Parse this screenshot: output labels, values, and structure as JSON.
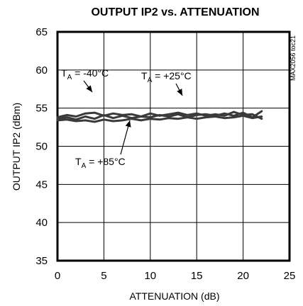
{
  "chart_data": {
    "type": "line",
    "title": "OUTPUT IP2 vs. ATTENUATION",
    "xlabel": "ATTENUATION (dB)",
    "ylabel": "OUTPUT IP2 (dBm)",
    "xlim": [
      0,
      25
    ],
    "ylim": [
      35,
      65
    ],
    "xticks": [
      "0",
      "5",
      "10",
      "15",
      "20",
      "25"
    ],
    "yticks": [
      "35",
      "40",
      "45",
      "50",
      "55",
      "60",
      "65"
    ],
    "grid": true,
    "figure_code": "MAX2056 toc21",
    "annotations": [
      {
        "prefix": "T",
        "sub": "A",
        "suffix": " = -40°C"
      },
      {
        "prefix": "T",
        "sub": "A",
        "suffix": " = +25°C"
      },
      {
        "prefix": "T",
        "sub": "A",
        "suffix": " = +85°C"
      }
    ],
    "series": [
      {
        "label": "T_A = -40°C",
        "x": [
          0,
          1,
          2,
          3,
          4,
          5,
          6,
          7,
          8,
          9,
          10,
          11,
          12,
          13,
          14,
          15,
          16,
          17,
          18,
          19,
          20,
          21,
          22
        ],
        "y": [
          53.8,
          54.1,
          53.9,
          54.3,
          54.4,
          54.0,
          54.3,
          54.1,
          54.2,
          53.9,
          54.3,
          54.0,
          54.2,
          54.4,
          54.1,
          54.3,
          54.0,
          54.2,
          54.0,
          54.5,
          54.1,
          54.2,
          53.6
        ]
      },
      {
        "label": "T_A = +25°C",
        "x": [
          0,
          1,
          2,
          3,
          4,
          5,
          6,
          7,
          8,
          9,
          10,
          11,
          12,
          13,
          14,
          15,
          16,
          17,
          18,
          19,
          20,
          21,
          22
        ],
        "y": [
          53.6,
          53.8,
          53.5,
          53.9,
          53.6,
          54.1,
          53.7,
          54.0,
          53.7,
          53.9,
          53.8,
          54.1,
          53.9,
          54.2,
          53.8,
          54.1,
          54.2,
          54.0,
          54.3,
          54.0,
          54.4,
          53.8,
          54.6
        ]
      },
      {
        "label": "T_A = +85°C",
        "x": [
          0,
          1,
          2,
          3,
          4,
          5,
          6,
          7,
          8,
          9,
          10,
          11,
          12,
          13,
          14,
          15,
          16,
          17,
          18,
          19,
          20,
          21,
          22
        ],
        "y": [
          53.4,
          53.5,
          53.3,
          53.4,
          53.2,
          53.5,
          53.3,
          53.4,
          53.6,
          53.4,
          53.6,
          53.5,
          53.7,
          53.6,
          53.8,
          53.6,
          53.8,
          53.9,
          53.7,
          53.8,
          54.0,
          53.7,
          53.9
        ]
      }
    ]
  }
}
